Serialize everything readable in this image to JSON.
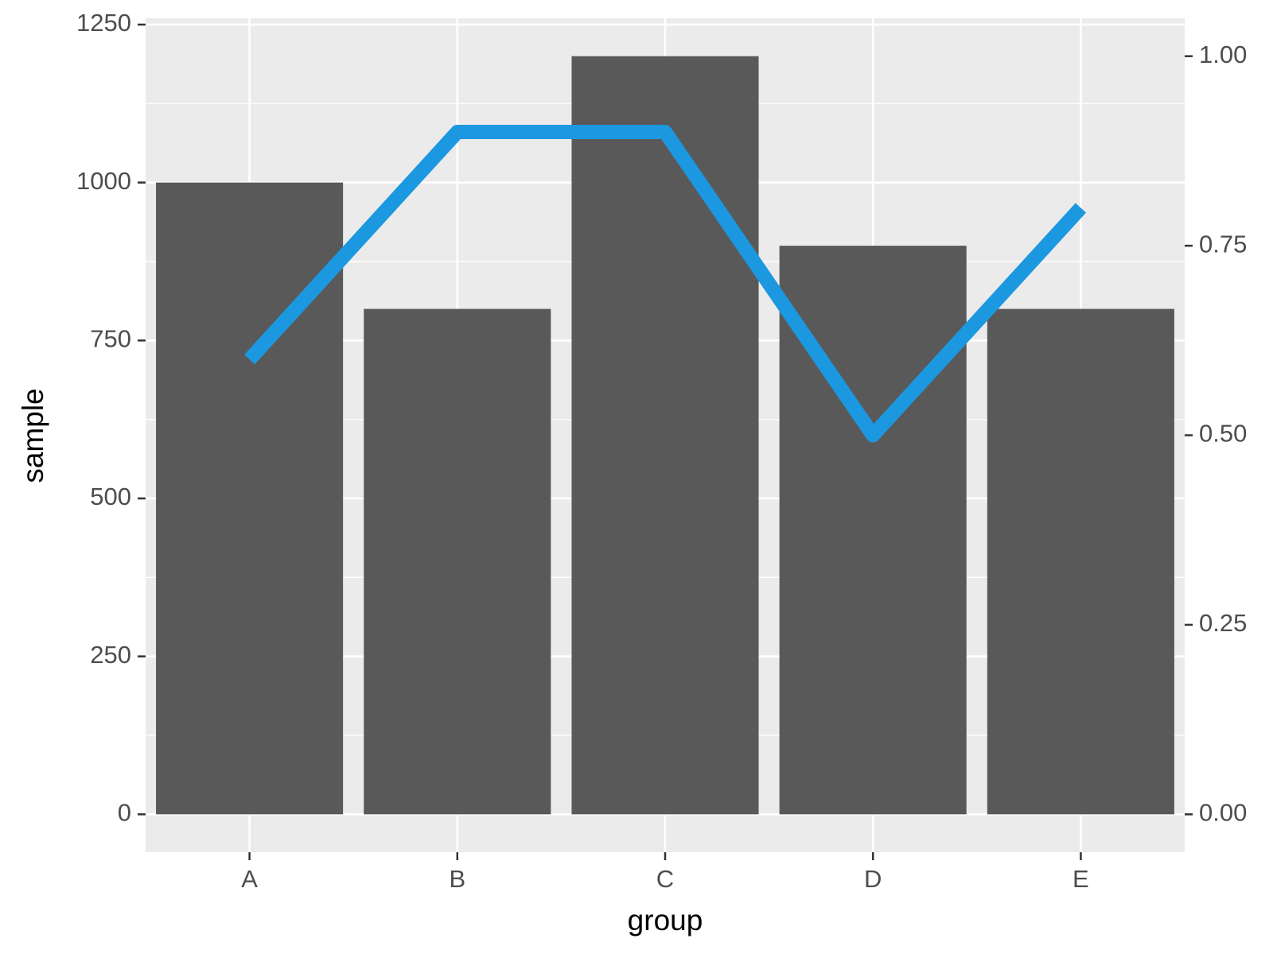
{
  "chart_data": {
    "type": "bar",
    "x_label": "group",
    "y_label": "sample",
    "categories": [
      "A",
      "B",
      "C",
      "D",
      "E"
    ],
    "series": [
      {
        "type": "bar",
        "color": "#595959",
        "values": [
          1000,
          800,
          1200,
          900,
          800
        ]
      },
      {
        "type": "line",
        "color": "#1b98e0",
        "axis": "y2",
        "values": [
          0.6,
          0.9,
          0.9,
          0.5,
          0.8
        ]
      }
    ],
    "ylim": [
      -60,
      1260
    ],
    "yticks": [
      0,
      250,
      500,
      750,
      1000,
      1250
    ],
    "y2lim": [
      -0.05,
      1.05
    ],
    "y2ticks": [
      {
        "value": 0,
        "label": "0.00"
      },
      {
        "value": 0.25,
        "label": "0.25"
      },
      {
        "value": 0.5,
        "label": "0.50"
      },
      {
        "value": 0.75,
        "label": "0.75"
      },
      {
        "value": 1,
        "label": "1.00"
      }
    ],
    "grid": true,
    "panel_color": "#ebebeb"
  }
}
